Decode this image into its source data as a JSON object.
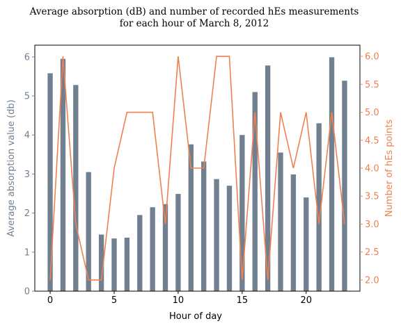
{
  "chart_data": {
    "type": "bar+line",
    "title_lines": [
      "Average absorption (dB) and number of recorded hEs measurements",
      "for each hour of March 8, 2012"
    ],
    "xlabel": "Hour of day",
    "ylabel_left": "Average absorption value (db)",
    "ylabel_right": "Number of hEs points",
    "xlim": [
      -1.2,
      24.2
    ],
    "ylim_left": [
      0,
      6.3
    ],
    "ylim_right": [
      1.8,
      6.2
    ],
    "x_ticks": [
      0,
      5,
      10,
      15,
      20
    ],
    "y_ticks_left": [
      0,
      1,
      2,
      3,
      4,
      5,
      6
    ],
    "y_ticks_right": [
      "2.0",
      "2.5",
      "3.0",
      "3.5",
      "4.0",
      "4.5",
      "5.0",
      "5.5",
      "6.0"
    ],
    "hours": [
      0,
      1,
      2,
      3,
      4,
      5,
      6,
      7,
      8,
      9,
      10,
      11,
      12,
      13,
      14,
      15,
      16,
      17,
      18,
      19,
      20,
      21,
      22,
      23
    ],
    "series": [
      {
        "kind": "bar",
        "axis": "left",
        "color": "#708090",
        "values": [
          5.58,
          5.95,
          5.28,
          3.05,
          1.45,
          1.35,
          1.37,
          1.95,
          2.15,
          2.23,
          2.49,
          3.76,
          3.32,
          2.87,
          2.7,
          4.0,
          5.1,
          5.78,
          3.55,
          2.99,
          2.4,
          4.3,
          5.99,
          5.39
        ]
      },
      {
        "kind": "line",
        "axis": "right",
        "color": "#f0804f",
        "values": [
          2,
          6,
          3,
          2,
          2,
          4,
          5,
          5,
          5,
          3,
          6,
          4,
          4,
          6,
          6,
          2,
          5,
          2,
          5,
          4,
          5,
          3,
          5,
          3
        ]
      }
    ],
    "colors": {
      "left_axis": "#708090",
      "right_axis": "#f0804f"
    },
    "grid": false,
    "legend": "none"
  }
}
